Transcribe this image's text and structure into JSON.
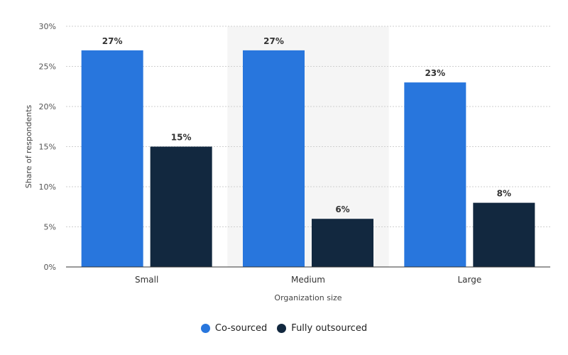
{
  "chart_data": {
    "type": "bar",
    "title": "",
    "xlabel": "Organization size",
    "ylabel": "Share of respondents",
    "categories": [
      "Small",
      "Medium",
      "Large"
    ],
    "series": [
      {
        "name": "Co-sourced",
        "color": "#2876DD",
        "values": [
          27,
          27,
          23
        ],
        "labels": [
          "27%",
          "27%",
          "23%"
        ]
      },
      {
        "name": "Fully outsourced",
        "color": "#12283F",
        "values": [
          15,
          6,
          8
        ],
        "labels": [
          "15%",
          "6%",
          "8%"
        ]
      }
    ],
    "ylim": [
      0,
      30
    ],
    "yticks": [
      0,
      5,
      10,
      15,
      20,
      25,
      30
    ],
    "ytick_labels": [
      "0%",
      "5%",
      "10%",
      "15%",
      "20%",
      "25%",
      "30%"
    ],
    "grid": true,
    "highlighted_category": "Medium",
    "legend_position": "bottom-center"
  }
}
